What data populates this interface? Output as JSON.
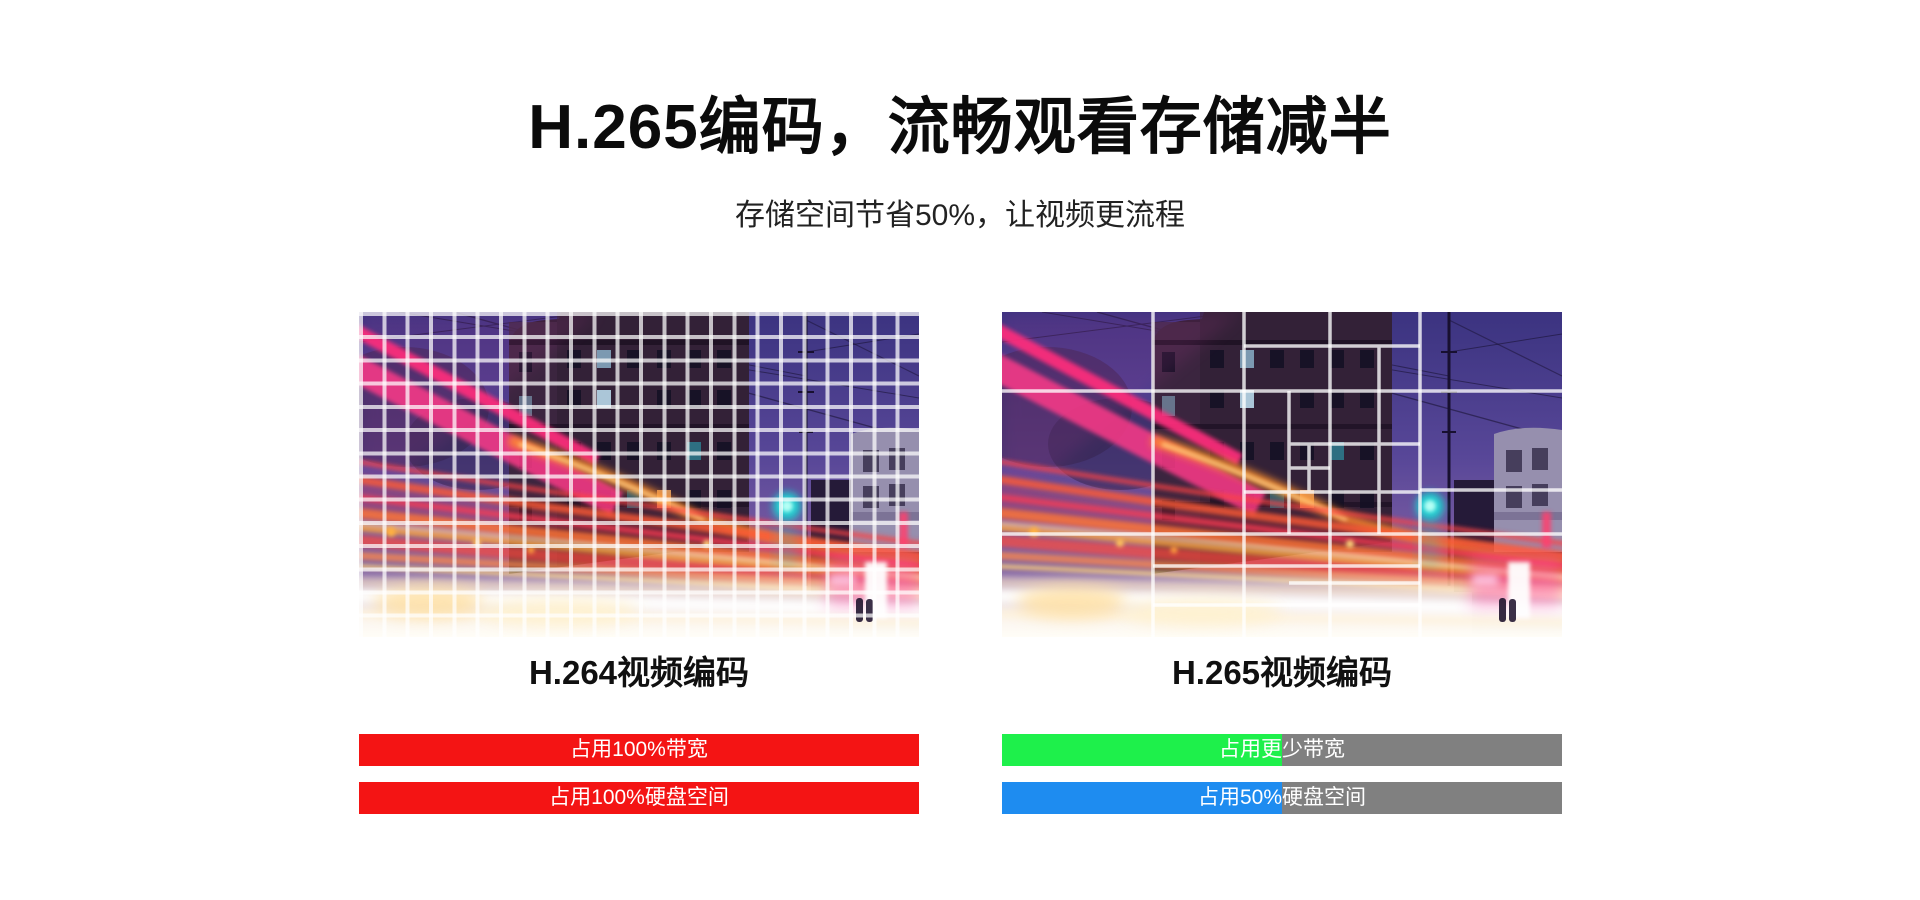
{
  "page": {
    "title": "H.265编码，流畅观看存储减半",
    "subtitle": "存储空间节省50%，让视频更流程"
  },
  "comparison": {
    "left": {
      "caption": "H.264视频编码",
      "grid_style": "uniform-fine-macroblocks",
      "bars": [
        {
          "label": "占用100%带宽",
          "fill_percent": 100,
          "fill_color": "#f41414",
          "track_color": "#f41414"
        },
        {
          "label": "占用100%硬盘空间",
          "fill_percent": 100,
          "fill_color": "#f41414",
          "track_color": "#f41414"
        }
      ]
    },
    "right": {
      "caption": "H.265视频编码",
      "grid_style": "variable-quadtree-blocks",
      "bars": [
        {
          "label": "占用更少带宽",
          "fill_percent": 50,
          "fill_color": "#1ef04b",
          "track_color": "#808080"
        },
        {
          "label": "占用50%硬盘空间",
          "fill_percent": 50,
          "fill_color": "#1e8cf0",
          "track_color": "#808080"
        }
      ]
    }
  },
  "colors": {
    "h264_bar_red": "#f41414",
    "h265_bandwidth_green": "#1ef04b",
    "h265_disk_blue": "#1e8cf0",
    "bar_track_gray": "#808080",
    "grid_line_white": "#ffffff",
    "page_background": "#ffffff"
  }
}
